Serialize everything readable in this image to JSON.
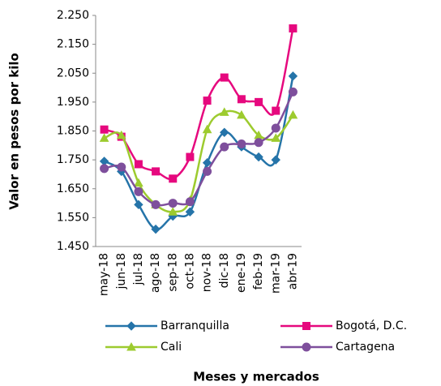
{
  "chart_data": {
    "type": "line",
    "y_label": "Valor en pesos por kilo",
    "x_label": "Meses  y mercados",
    "categories": [
      "may-18",
      "jun-18",
      "jul-18",
      "ago-18",
      "sep-18",
      "oct-18",
      "nov-18",
      "dic-18",
      "ene-19",
      "feb-19",
      "mar-19",
      "abr-19"
    ],
    "series": [
      {
        "name": "Barranquilla",
        "color": "#2574a9",
        "marker": "diamond",
        "values": [
          1745,
          1710,
          1595,
          1510,
          1555,
          1570,
          1740,
          1845,
          1795,
          1760,
          1750,
          2040
        ]
      },
      {
        "name": "Bogotá, D.C.",
        "color": "#e6087e",
        "marker": "square",
        "values": [
          1855,
          1830,
          1735,
          1710,
          1685,
          1760,
          1955,
          2035,
          1960,
          1950,
          1920,
          2205
        ]
      },
      {
        "name": "Cali",
        "color": "#9dcb2f",
        "marker": "triangle",
        "values": [
          1825,
          1835,
          1670,
          1595,
          1570,
          1610,
          1855,
          1915,
          1905,
          1835,
          1825,
          1905
        ]
      },
      {
        "name": "Cartagena",
        "color": "#7e4f9c",
        "marker": "circle",
        "values": [
          1720,
          1725,
          1640,
          1595,
          1600,
          1605,
          1710,
          1795,
          1805,
          1810,
          1860,
          1985
        ]
      }
    ],
    "ylim": [
      1450,
      2250
    ],
    "yticks": [
      {
        "value": 1450,
        "label": "1.450"
      },
      {
        "value": 1550,
        "label": "1.550"
      },
      {
        "value": 1650,
        "label": "1.650"
      },
      {
        "value": 1750,
        "label": "1.750"
      },
      {
        "value": 1850,
        "label": "1.850"
      },
      {
        "value": 1950,
        "label": "1.950"
      },
      {
        "value": 2050,
        "label": "2.050"
      },
      {
        "value": 2150,
        "label": "2.150"
      },
      {
        "value": 2250,
        "label": "2.250"
      }
    ],
    "smooth": true,
    "legend": "bottom"
  }
}
